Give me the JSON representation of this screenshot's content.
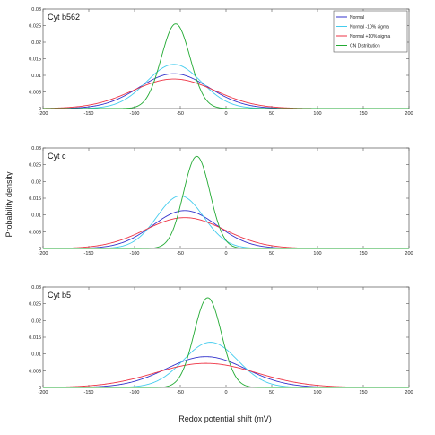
{
  "chart_data": {
    "type": "line",
    "xlabel": "Redox potential shift (mV)",
    "ylabel": "Probability density",
    "legend_placement": "top-right",
    "legend_entries": [
      {
        "name": "Normal",
        "color": "#3333cc"
      },
      {
        "name": "Normal -10% sigma",
        "color": "#44ccee"
      },
      {
        "name": "Normal +10% sigma",
        "color": "#ee3344"
      },
      {
        "name": "CN Distribution",
        "color": "#22aa33"
      }
    ],
    "xlim": [
      -200,
      200
    ],
    "xticks": [
      -200,
      -150,
      -100,
      -50,
      0,
      50,
      100,
      150,
      200
    ],
    "ylim": [
      0,
      0.03
    ],
    "yticks": [
      "0",
      "0.005",
      "0.01",
      "0.015",
      "0.02",
      "0.025",
      "0.03"
    ],
    "grid": false,
    "panels": [
      {
        "label": "Cyt b562",
        "show_legend": true,
        "curves": [
          {
            "series": "Normal",
            "mean": -57,
            "peak": 0.0105
          },
          {
            "series": "Normal -10% sigma",
            "mean": -57,
            "peak": 0.0133
          },
          {
            "series": "Normal +10% sigma",
            "mean": -57,
            "peak": 0.0089
          },
          {
            "series": "CN Distribution",
            "mean": -55,
            "peak": 0.0255
          }
        ]
      },
      {
        "label": "Cyt c",
        "show_legend": false,
        "curves": [
          {
            "series": "Normal",
            "mean": -45,
            "peak": 0.0113
          },
          {
            "series": "Normal -10% sigma",
            "mean": -50,
            "peak": 0.0157
          },
          {
            "series": "Normal +10% sigma",
            "mean": -45,
            "peak": 0.0092
          },
          {
            "series": "CN Distribution",
            "mean": -32,
            "peak": 0.0275
          }
        ]
      },
      {
        "label": "Cyt b5",
        "show_legend": false,
        "curves": [
          {
            "series": "Normal",
            "mean": -22,
            "peak": 0.0092
          },
          {
            "series": "Normal -10% sigma",
            "mean": -17,
            "peak": 0.0135
          },
          {
            "series": "Normal +10% sigma",
            "mean": -22,
            "peak": 0.0072
          },
          {
            "series": "CN Distribution",
            "mean": -20,
            "peak": 0.0268
          }
        ]
      }
    ]
  }
}
